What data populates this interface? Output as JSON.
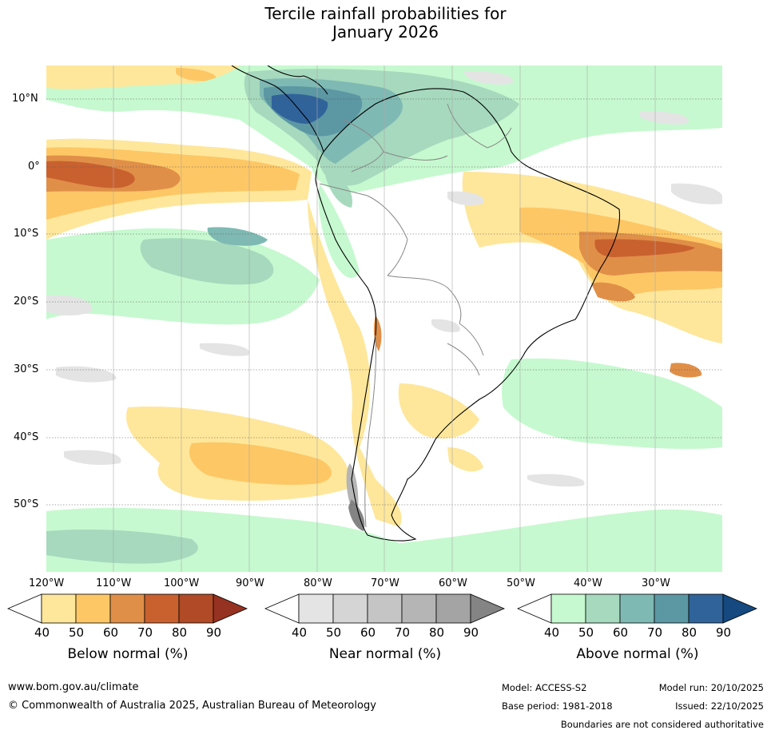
{
  "title": {
    "line1": "Tercile rainfall probabilities for",
    "line2": "January 2026"
  },
  "map": {
    "lat_labels": [
      "10°N",
      "0°",
      "10°S",
      "20°S",
      "30°S",
      "40°S",
      "50°S"
    ],
    "lon_labels": [
      "120°W",
      "110°W",
      "100°W",
      "90°W",
      "80°W",
      "70°W",
      "60°W",
      "50°W",
      "40°W",
      "30°W"
    ],
    "land_color": "#ffffff",
    "coast_color": "#000000",
    "border_color": "#888888"
  },
  "colorbars": {
    "below": {
      "title": "Below normal (%)",
      "ticks": [
        "40",
        "50",
        "60",
        "70",
        "80",
        "90"
      ],
      "colors": [
        "#fee79b",
        "#fdc765",
        "#e08f48",
        "#c9612f",
        "#b14a26",
        "#953221"
      ]
    },
    "near": {
      "title": "Near normal (%)",
      "ticks": [
        "40",
        "50",
        "60",
        "70",
        "80",
        "90"
      ],
      "colors": [
        "#e4e4e4",
        "#d5d5d5",
        "#c5c5c5",
        "#b5b5b5",
        "#a4a4a4",
        "#848484"
      ]
    },
    "above": {
      "title": "Above normal (%)",
      "ticks": [
        "40",
        "50",
        "60",
        "70",
        "80",
        "90"
      ],
      "colors": [
        "#c6f9cf",
        "#a6d9bd",
        "#7fb9b3",
        "#5c97a4",
        "#30639a",
        "#15497f"
      ]
    }
  },
  "footer": {
    "website": "www.bom.gov.au/climate",
    "copyright": "© Commonwealth of Australia 2025, Australian Bureau of Meteorology",
    "model": "Model: ACCESS-S2",
    "base_period": "Base period: 1981-2018",
    "model_run": "Model run: 20/10/2025",
    "issued": "Issued: 22/10/2025",
    "disclaimer": "Boundaries are not considered authoritative"
  }
}
